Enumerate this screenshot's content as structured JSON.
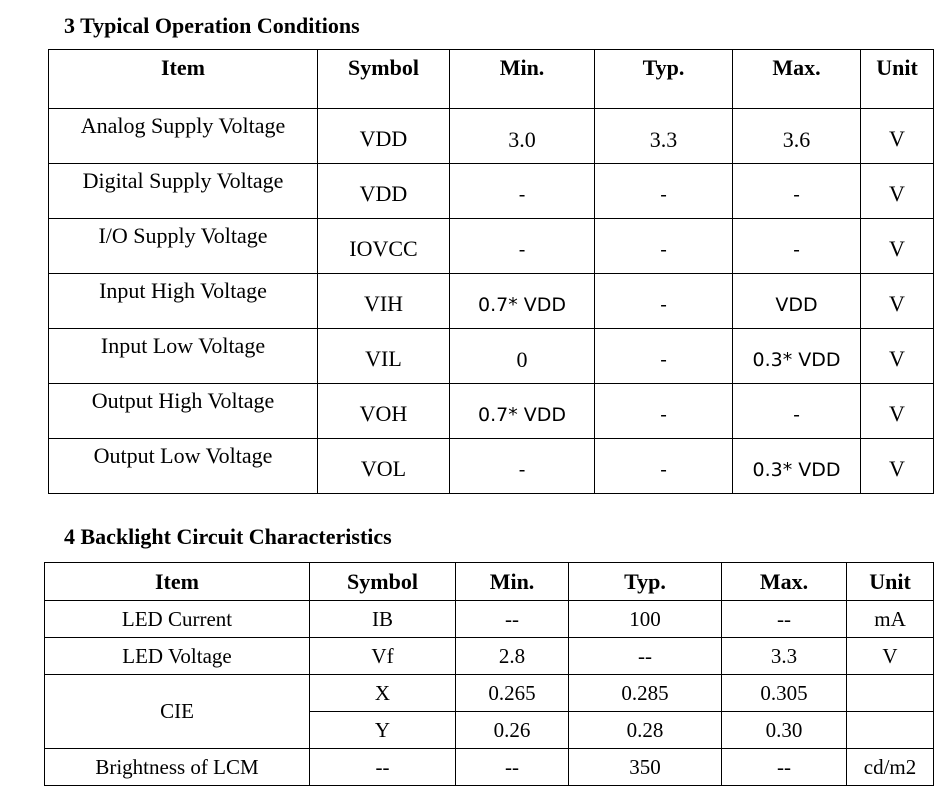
{
  "section3": {
    "title": "3 Typical Operation Conditions",
    "headers": [
      "Item",
      "Symbol",
      "Min.",
      "Typ.",
      "Max.",
      "Unit"
    ],
    "rows": [
      {
        "item": "Analog Supply Voltage",
        "symbol": "VDD",
        "min": "3.0",
        "typ": "3.3",
        "max": "3.6",
        "unit": "V"
      },
      {
        "item": "Digital Supply Voltage",
        "symbol": "VDD",
        "min": "-",
        "typ": "-",
        "max": "-",
        "unit": "V"
      },
      {
        "item": "I/O Supply Voltage",
        "symbol": "IOVCC",
        "min": "-",
        "typ": "-",
        "max": "-",
        "unit": "V"
      },
      {
        "item": "Input High Voltage",
        "symbol": "VIH",
        "min": "0.7* VDD",
        "typ": "-",
        "max": "VDD",
        "unit": "V"
      },
      {
        "item": "Input Low Voltage",
        "symbol": "VIL",
        "min": "0",
        "typ": "-",
        "max": "0.3* VDD",
        "unit": "V"
      },
      {
        "item": "Output High Voltage",
        "symbol": "VOH",
        "min": "0.7* VDD",
        "typ": "-",
        "max": "-",
        "unit": "V"
      },
      {
        "item": "Output Low Voltage",
        "symbol": "VOL",
        "min": "-",
        "typ": "-",
        "max": "0.3* VDD",
        "unit": "V"
      }
    ]
  },
  "section4": {
    "title": "4 Backlight Circuit Characteristics",
    "headers": [
      "Item",
      "Symbol",
      "Min.",
      "Typ.",
      "Max.",
      "Unit"
    ],
    "led_current": {
      "item": "LED Current",
      "symbol": "IB",
      "min": "--",
      "typ": "100",
      "max": "--",
      "unit": "mA"
    },
    "led_voltage": {
      "item": "LED Voltage",
      "symbol": "Vf",
      "min": "2.8",
      "typ": "--",
      "max": "3.3",
      "unit": "V"
    },
    "cie": {
      "item": "CIE",
      "x": {
        "symbol": "X",
        "min": "0.265",
        "typ": "0.285",
        "max": "0.305",
        "unit": ""
      },
      "y": {
        "symbol": "Y",
        "min": "0.26",
        "typ": "0.28",
        "max": "0.30",
        "unit": ""
      }
    },
    "brightness": {
      "item": "Brightness of LCM",
      "symbol": "--",
      "min": "--",
      "typ": "350",
      "max": "--",
      "unit": "cd/m2"
    }
  }
}
